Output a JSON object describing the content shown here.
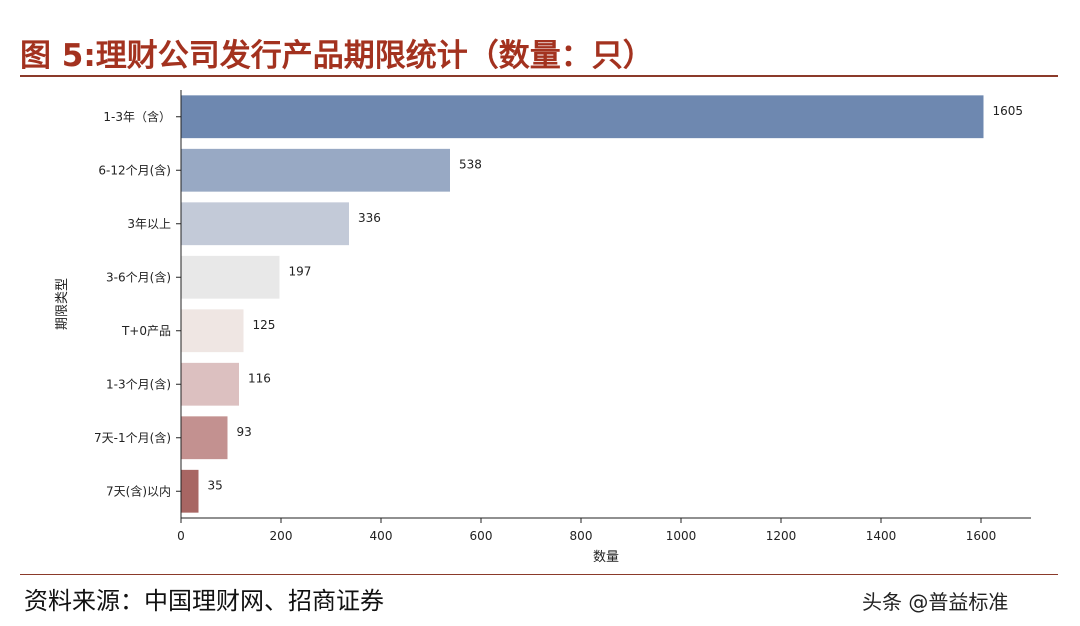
{
  "header": {
    "title": "图 5:理财公司发行产品期限统计（数量：只）"
  },
  "footer": {
    "source": "资料来源：中国理财网、招商证券",
    "watermark": "头条 @普益标准"
  },
  "chart_data": {
    "type": "bar",
    "orientation": "horizontal",
    "title": "",
    "xlabel": "数量",
    "ylabel": "期限类型",
    "categories": [
      "1-3年（含）",
      "6-12个月(含)",
      "3年以上",
      "3-6个月(含)",
      "T+0产品",
      "1-3个月(含)",
      "7天-1个月(含)",
      "7天(含)以内"
    ],
    "values": [
      1605,
      538,
      336,
      197,
      125,
      116,
      93,
      35
    ],
    "xlim": [
      0,
      1700
    ],
    "xticks": [
      0,
      200,
      400,
      600,
      800,
      1000,
      1200,
      1400,
      1600
    ],
    "grid": false,
    "colors": [
      "#6e88b0",
      "#98a9c4",
      "#c3cad8",
      "#e8e8e8",
      "#efe6e3",
      "#dcc0c0",
      "#c39190",
      "#a86663"
    ]
  }
}
